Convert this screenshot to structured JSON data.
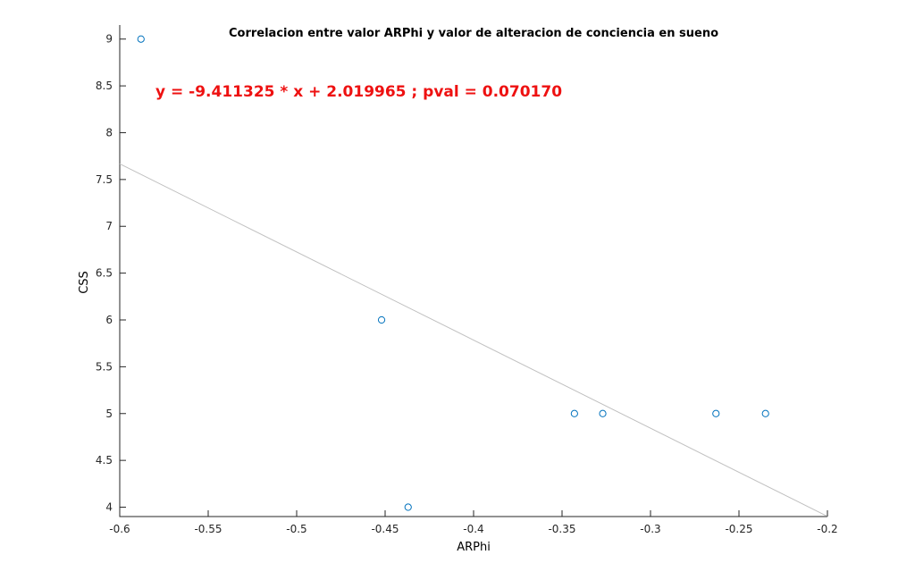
{
  "chart_data": {
    "type": "scatter",
    "title": "Correlacion entre valor ARPhi y valor de alteracion de conciencia en sueno",
    "xlabel": "ARPhi",
    "ylabel": "CSS",
    "xlim": [
      -0.6,
      -0.2
    ],
    "ylim": [
      3.9,
      9.15
    ],
    "xticks": [
      -0.6,
      -0.55,
      -0.5,
      -0.45,
      -0.4,
      -0.35,
      -0.3,
      -0.25,
      -0.2
    ],
    "xtick_labels": [
      "-0.6",
      "-0.55",
      "-0.5",
      "-0.45",
      "-0.4",
      "-0.35",
      "-0.3",
      "-0.25",
      "-0.2"
    ],
    "yticks": [
      4,
      4.5,
      5,
      5.5,
      6,
      6.5,
      7,
      7.5,
      8,
      8.5,
      9
    ],
    "ytick_labels": [
      "4",
      "4.5",
      "5",
      "5.5",
      "6",
      "6.5",
      "7",
      "7.5",
      "8",
      "8.5",
      "9"
    ],
    "grid": false,
    "legend": "none",
    "series": [
      {
        "marker": "open-circle",
        "color": "#0072bd",
        "points": [
          {
            "x": -0.588,
            "y": 9
          },
          {
            "x": -0.452,
            "y": 6
          },
          {
            "x": -0.437,
            "y": 4
          },
          {
            "x": -0.343,
            "y": 5
          },
          {
            "x": -0.327,
            "y": 5
          },
          {
            "x": -0.263,
            "y": 5
          },
          {
            "x": -0.235,
            "y": 5
          }
        ]
      }
    ],
    "fit_line": {
      "color": "#c0c0c0",
      "points": [
        {
          "x": -0.6,
          "y": 7.667
        },
        {
          "x": -0.2,
          "y": 3.902
        }
      ]
    },
    "annotation": {
      "text": "y = -9.411325 * x + 2.019965 ; pval = 0.070170",
      "color": "#ee1111"
    }
  }
}
